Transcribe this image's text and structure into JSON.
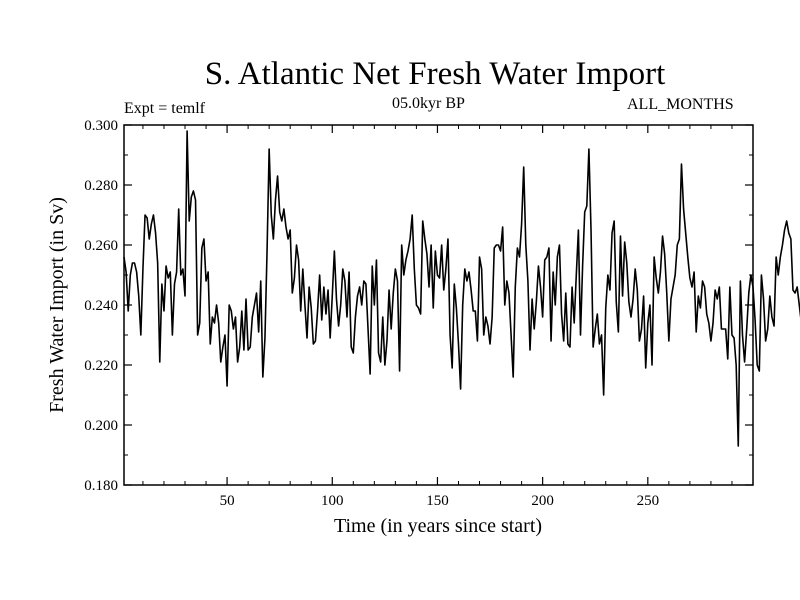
{
  "header": {
    "title": "S. Atlantic Net Fresh Water Import",
    "experiment": "Expt = temlf",
    "period": "05.0kyr BP",
    "months": "ALL_MONTHS"
  },
  "chart_data": {
    "type": "line",
    "title": "S. Atlantic Net Fresh Water Import",
    "xlabel": "Time (in years since start)",
    "ylabel": "Fresh Water Import (in Sv)",
    "xlim": [
      1,
      300
    ],
    "ylim": [
      0.18,
      0.3
    ],
    "x_ticks": [
      50,
      100,
      150,
      200,
      250
    ],
    "x_tick_labels": [
      "50",
      "100",
      "150",
      "200",
      "250"
    ],
    "y_ticks": [
      0.18,
      0.2,
      0.22,
      0.24,
      0.26,
      0.28,
      0.3
    ],
    "y_tick_labels": [
      "0.180",
      "0.200",
      "0.220",
      "0.240",
      "0.260",
      "0.280",
      "0.300"
    ],
    "series": [
      {
        "name": "Net fresh water import",
        "x_start": 1,
        "x_step": 1,
        "values": [
          0.256,
          0.251,
          0.238,
          0.25,
          0.254,
          0.254,
          0.251,
          0.243,
          0.23,
          0.252,
          0.27,
          0.269,
          0.262,
          0.267,
          0.27,
          0.264,
          0.254,
          0.221,
          0.247,
          0.238,
          0.253,
          0.249,
          0.251,
          0.23,
          0.247,
          0.251,
          0.272,
          0.25,
          0.252,
          0.243,
          0.298,
          0.268,
          0.276,
          0.278,
          0.275,
          0.23,
          0.234,
          0.259,
          0.262,
          0.248,
          0.251,
          0.227,
          0.236,
          0.234,
          0.24,
          0.234,
          0.221,
          0.226,
          0.23,
          0.213,
          0.24,
          0.238,
          0.232,
          0.236,
          0.221,
          0.226,
          0.238,
          0.225,
          0.242,
          0.225,
          0.226,
          0.236,
          0.24,
          0.244,
          0.231,
          0.248,
          0.216,
          0.229,
          0.258,
          0.292,
          0.27,
          0.262,
          0.275,
          0.283,
          0.271,
          0.268,
          0.272,
          0.266,
          0.262,
          0.265,
          0.244,
          0.249,
          0.26,
          0.255,
          0.238,
          0.252,
          0.24,
          0.229,
          0.246,
          0.239,
          0.227,
          0.228,
          0.238,
          0.25,
          0.235,
          0.246,
          0.237,
          0.245,
          0.229,
          0.243,
          0.258,
          0.242,
          0.233,
          0.24,
          0.252,
          0.248,
          0.236,
          0.251,
          0.226,
          0.224,
          0.236,
          0.243,
          0.246,
          0.24,
          0.248,
          0.247,
          0.232,
          0.217,
          0.253,
          0.24,
          0.255,
          0.224,
          0.221,
          0.236,
          0.22,
          0.228,
          0.245,
          0.232,
          0.244,
          0.252,
          0.248,
          0.218,
          0.26,
          0.25,
          0.255,
          0.258,
          0.262,
          0.27,
          0.252,
          0.24,
          0.239,
          0.237,
          0.268,
          0.262,
          0.257,
          0.246,
          0.26,
          0.239,
          0.258,
          0.25,
          0.249,
          0.26,
          0.245,
          0.252,
          0.262,
          0.23,
          0.219,
          0.247,
          0.239,
          0.227,
          0.212,
          0.24,
          0.252,
          0.248,
          0.251,
          0.245,
          0.238,
          0.238,
          0.228,
          0.256,
          0.252,
          0.23,
          0.236,
          0.233,
          0.227,
          0.236,
          0.259,
          0.26,
          0.26,
          0.258,
          0.266,
          0.24,
          0.248,
          0.244,
          0.23,
          0.216,
          0.246,
          0.259,
          0.256,
          0.267,
          0.286,
          0.26,
          0.248,
          0.225,
          0.242,
          0.232,
          0.241,
          0.253,
          0.246,
          0.236,
          0.255,
          0.256,
          0.259,
          0.228,
          0.251,
          0.24,
          0.256,
          0.26,
          0.237,
          0.228,
          0.244,
          0.227,
          0.226,
          0.246,
          0.234,
          0.25,
          0.265,
          0.23,
          0.253,
          0.271,
          0.273,
          0.292,
          0.265,
          0.226,
          0.232,
          0.237,
          0.227,
          0.23,
          0.21,
          0.239,
          0.25,
          0.245,
          0.264,
          0.268,
          0.241,
          0.231,
          0.263,
          0.243,
          0.261,
          0.254,
          0.241,
          0.236,
          0.242,
          0.252,
          0.245,
          0.228,
          0.232,
          0.243,
          0.219,
          0.234,
          0.24,
          0.22,
          0.256,
          0.249,
          0.244,
          0.251,
          0.263,
          0.257,
          0.244,
          0.228,
          0.242,
          0.246,
          0.25,
          0.26,
          0.262,
          0.287,
          0.272,
          0.264,
          0.256,
          0.249,
          0.246,
          0.251,
          0.231,
          0.243,
          0.239,
          0.248,
          0.246,
          0.237,
          0.234,
          0.228,
          0.234,
          0.245,
          0.242,
          0.246,
          0.232,
          0.232,
          0.232,
          0.222,
          0.246,
          0.23,
          0.229,
          0.22,
          0.193,
          0.248,
          0.23,
          0.221,
          0.232,
          0.244,
          0.25,
          0.246,
          0.235,
          0.22,
          0.218,
          0.25,
          0.242,
          0.228,
          0.232,
          0.243,
          0.236,
          0.233,
          0.256,
          0.25,
          0.256,
          0.26,
          0.265,
          0.268,
          0.264,
          0.262,
          0.245,
          0.244,
          0.246,
          0.24,
          0.234,
          0.235,
          0.246,
          0.248,
          0.247,
          0.239,
          0.23
        ]
      }
    ]
  }
}
